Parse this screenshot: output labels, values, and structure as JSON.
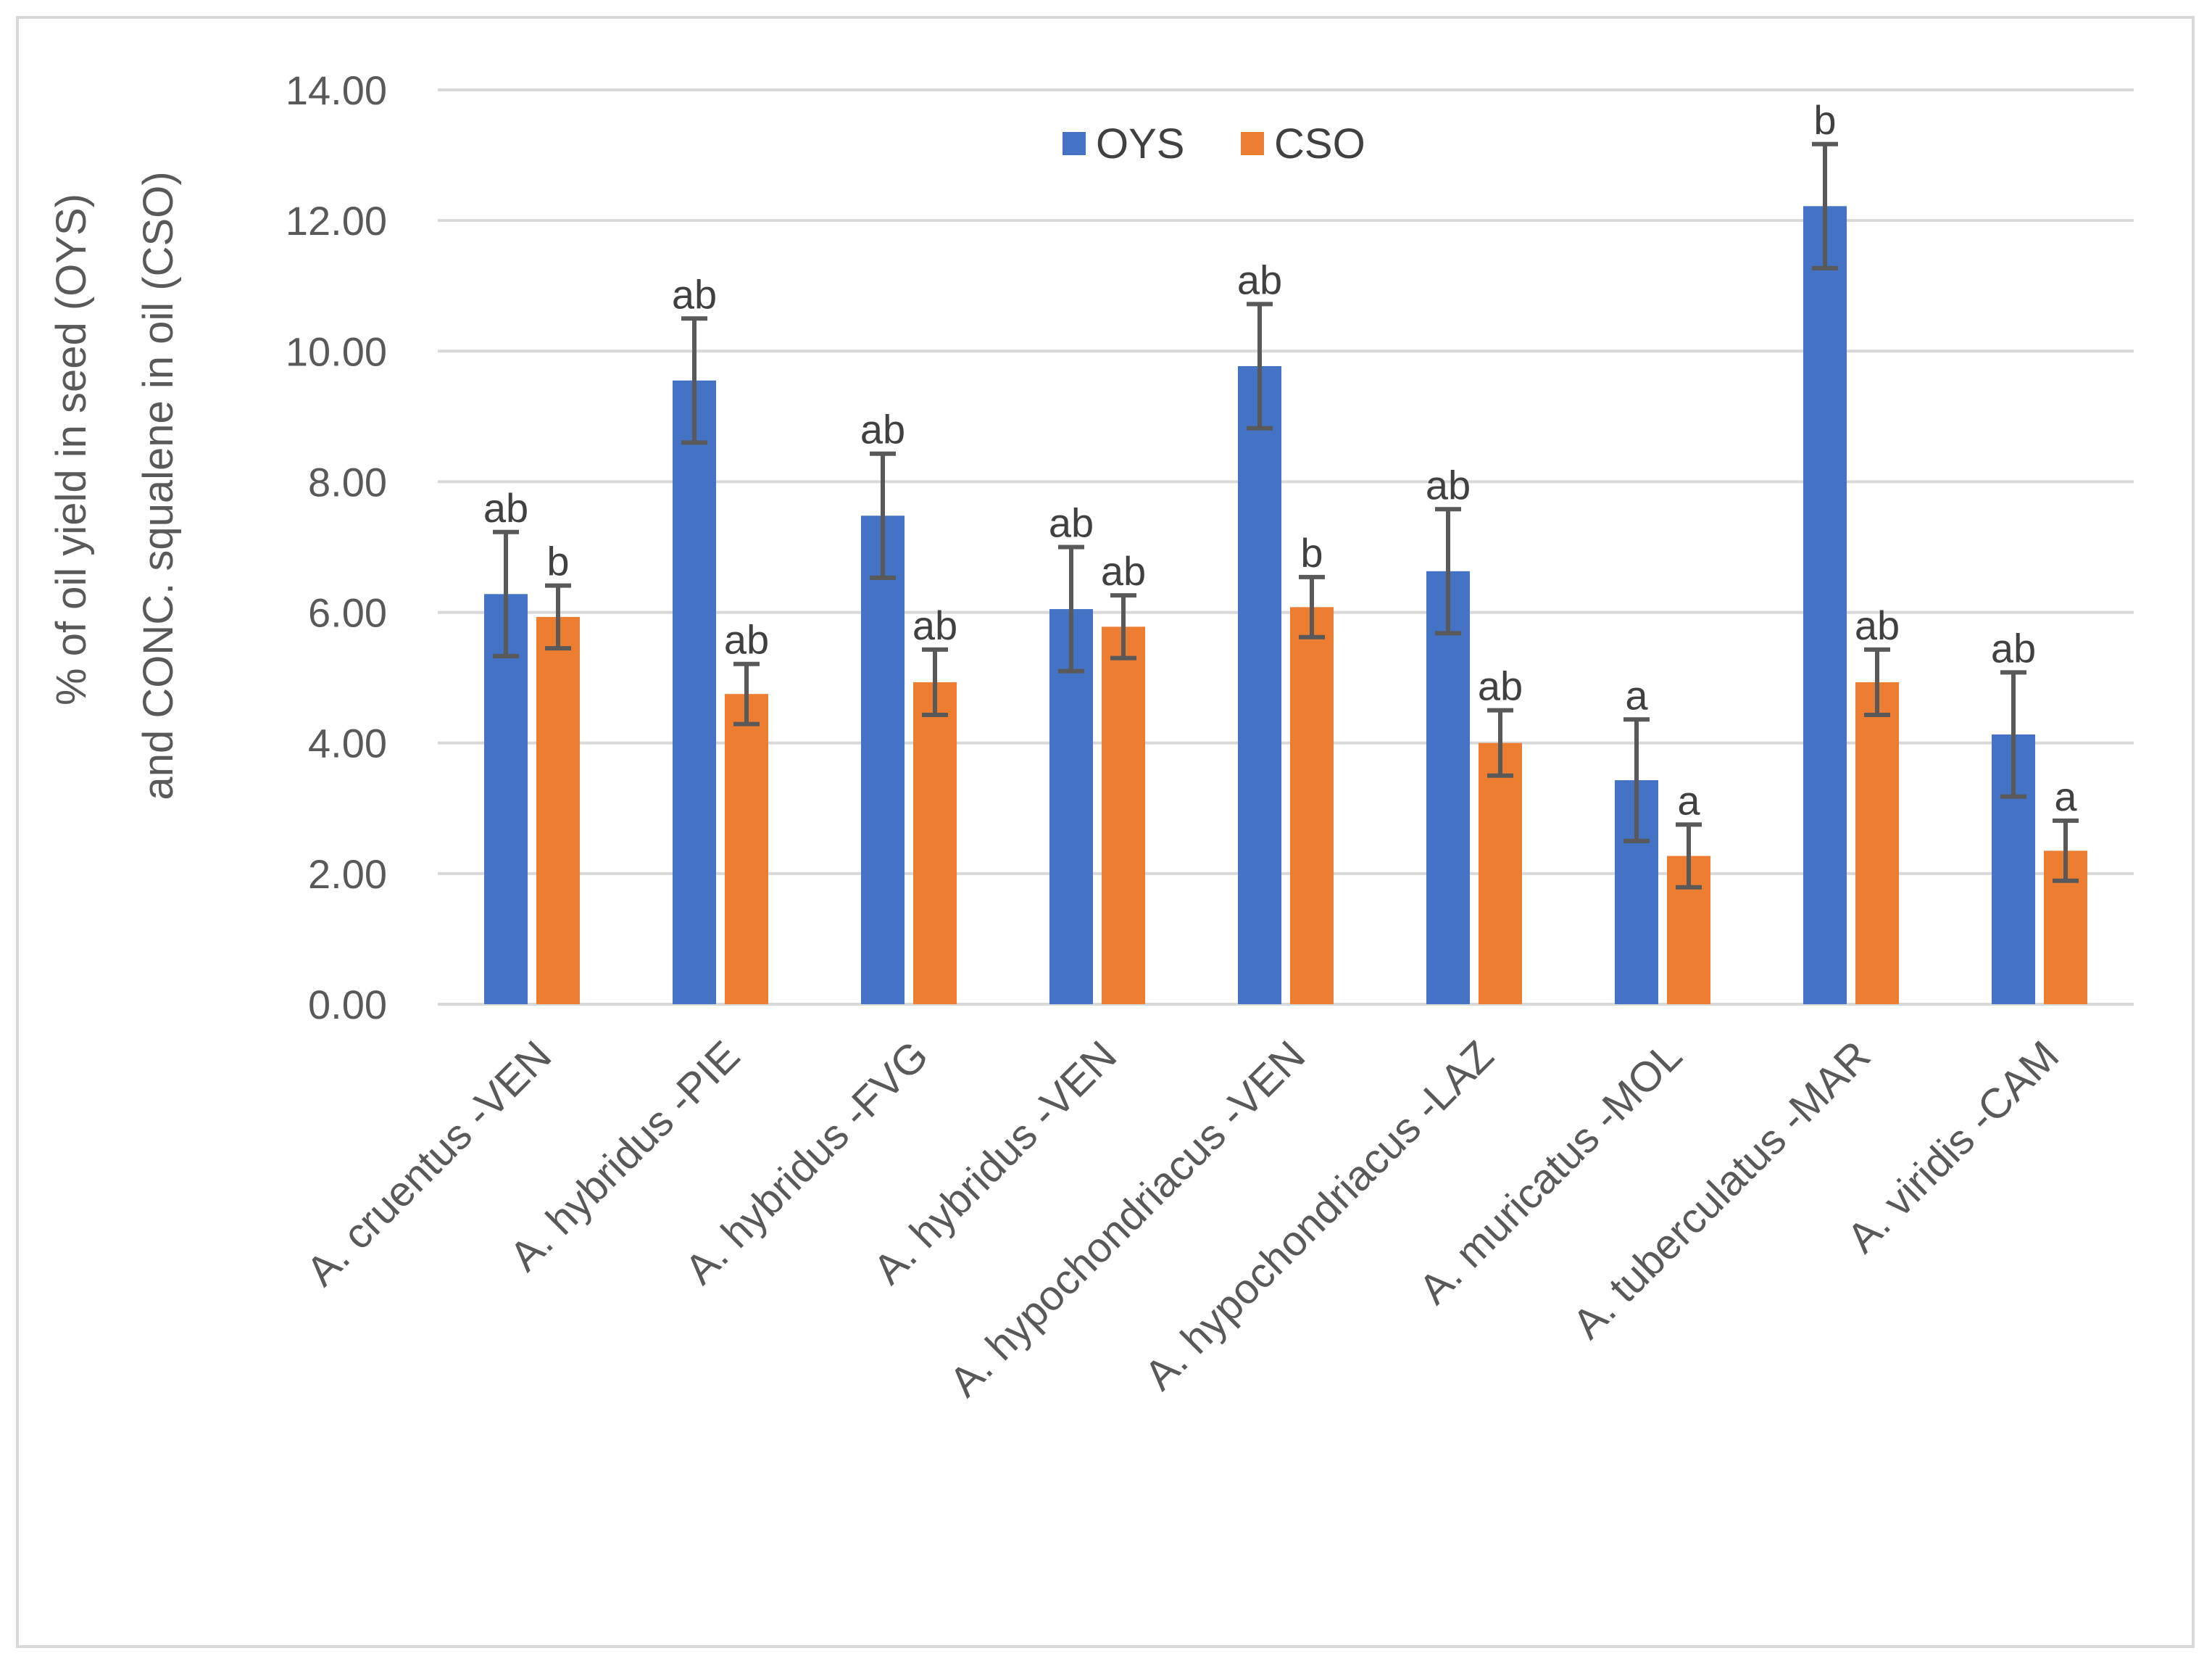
{
  "chart_data": {
    "type": "bar",
    "title": "",
    "xlabel": "",
    "ylabel_lines": [
      "% of oil yield in seed (OYS)",
      "and CONC. squalene in oil (CSO)"
    ],
    "ylim": [
      0,
      14
    ],
    "yticks": [
      "0.00",
      "2.00",
      "4.00",
      "6.00",
      "8.00",
      "10.00",
      "12.00",
      "14.00"
    ],
    "ytick_values": [
      0,
      2,
      4,
      6,
      8,
      10,
      12,
      14
    ],
    "grid": true,
    "legend_position": "top-center",
    "categories": [
      "A. cruentus -VEN",
      "A. hybridus -PIE",
      "A. hybridus -FVG",
      "A. hybridus -VEN",
      "A. hypochondriacus -VEN",
      "A. hypochondriacus -LAZ",
      "A. muricatus -MOL",
      "A. tuberculatus -MAR",
      "A. viridis -CAM"
    ],
    "series": [
      {
        "name": "OYS",
        "color": "#4472c4",
        "values": [
          6.28,
          9.55,
          7.48,
          6.05,
          9.77,
          6.63,
          3.43,
          12.22,
          4.13
        ],
        "errors": [
          0.95,
          0.95,
          0.95,
          0.95,
          0.95,
          0.95,
          0.93,
          0.95,
          0.95
        ],
        "labels": [
          "ab",
          "ab",
          "ab",
          "ab",
          "ab",
          "ab",
          "a",
          "b",
          "ab"
        ]
      },
      {
        "name": "CSO",
        "color": "#ed7d31",
        "values": [
          5.93,
          4.75,
          4.93,
          5.78,
          6.08,
          4.0,
          2.27,
          4.93,
          2.35
        ],
        "errors": [
          0.48,
          0.46,
          0.5,
          0.48,
          0.46,
          0.5,
          0.48,
          0.5,
          0.46
        ],
        "labels": [
          "b",
          "ab",
          "ab",
          "ab",
          "b",
          "ab",
          "a",
          "ab",
          "a"
        ]
      }
    ]
  }
}
